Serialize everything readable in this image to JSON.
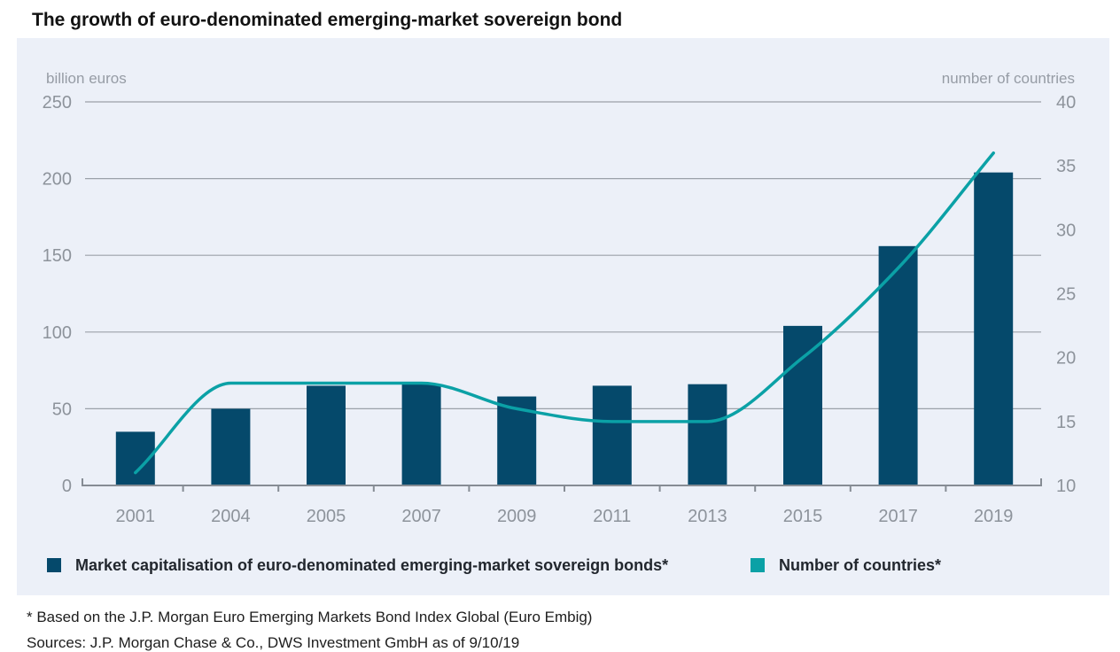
{
  "page": {
    "title": "The growth of euro-denominated emerging-market sovereign bond",
    "footnote1": "* Based on the J.P. Morgan Euro Emerging Markets Bond Index Global (Euro Embig)",
    "footnote2": "Sources: J.P. Morgan Chase & Co., DWS Investment GmbH as of 9/10/19"
  },
  "colors": {
    "bar": "#05496b",
    "line": "#0ba1a6",
    "panel_bg": "#ecf0f8",
    "grid": "#9ba1a9",
    "axis": "#868c94",
    "tick_text": "#8d939b",
    "axis_title_text": "#969ca5",
    "title_text": "#121212",
    "legend_text": "#22272e",
    "footnote_text": "#1d1d1d"
  },
  "chart_data": {
    "type": "bar",
    "title": "The growth of euro-denominated emerging-market sovereign bond",
    "categories": [
      "2001",
      "2004",
      "2005",
      "2007",
      "2009",
      "2011",
      "2013",
      "2015",
      "2017",
      "2019"
    ],
    "series": [
      {
        "name": "Market capitalisation of euro-denominated emerging-market sovereign bonds*",
        "type": "bar",
        "axis": "left",
        "values": [
          35,
          50,
          65,
          66,
          58,
          65,
          66,
          104,
          156,
          204
        ]
      },
      {
        "name": "Number of countries*",
        "type": "line",
        "axis": "right",
        "values": [
          11,
          18,
          18,
          18,
          16,
          15,
          15,
          20,
          27,
          36
        ]
      }
    ],
    "left_axis": {
      "label": "billion euros",
      "ticks": [
        0,
        50,
        100,
        150,
        200,
        250
      ],
      "range": [
        0,
        250
      ]
    },
    "right_axis": {
      "label": "number of countries",
      "ticks": [
        10,
        15,
        20,
        25,
        30,
        35,
        40
      ],
      "range": [
        10,
        40
      ]
    },
    "grid": true,
    "legend_position": "bottom"
  }
}
